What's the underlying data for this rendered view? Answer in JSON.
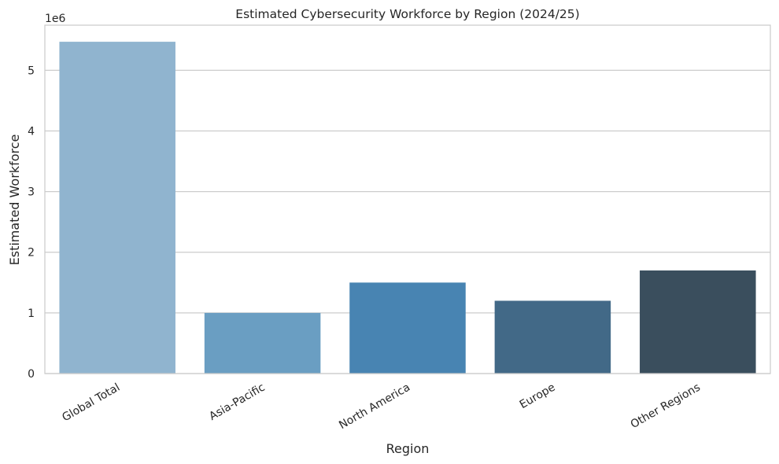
{
  "chart_data": {
    "type": "bar",
    "title": "Estimated Cybersecurity Workforce by Region (2024/25)",
    "xlabel": "Region",
    "ylabel": "Estimated Workforce",
    "y_offset_label": "1e6",
    "categories": [
      "Global Total",
      "Asia-Pacific",
      "North America",
      "Europe",
      "Other Regions"
    ],
    "values": [
      5470000,
      1000000,
      1500000,
      1200000,
      1700000
    ],
    "colors": [
      "#90b4cf",
      "#6a9ec2",
      "#4884b2",
      "#426987",
      "#3a4e5d"
    ],
    "ylim": [
      0,
      5743500
    ],
    "yticks": [
      0,
      1000000,
      2000000,
      3000000,
      4000000,
      5000000
    ],
    "ytick_labels": [
      "0",
      "1",
      "2",
      "3",
      "4",
      "5"
    ],
    "grid": "y",
    "xtick_rotation": 30
  }
}
